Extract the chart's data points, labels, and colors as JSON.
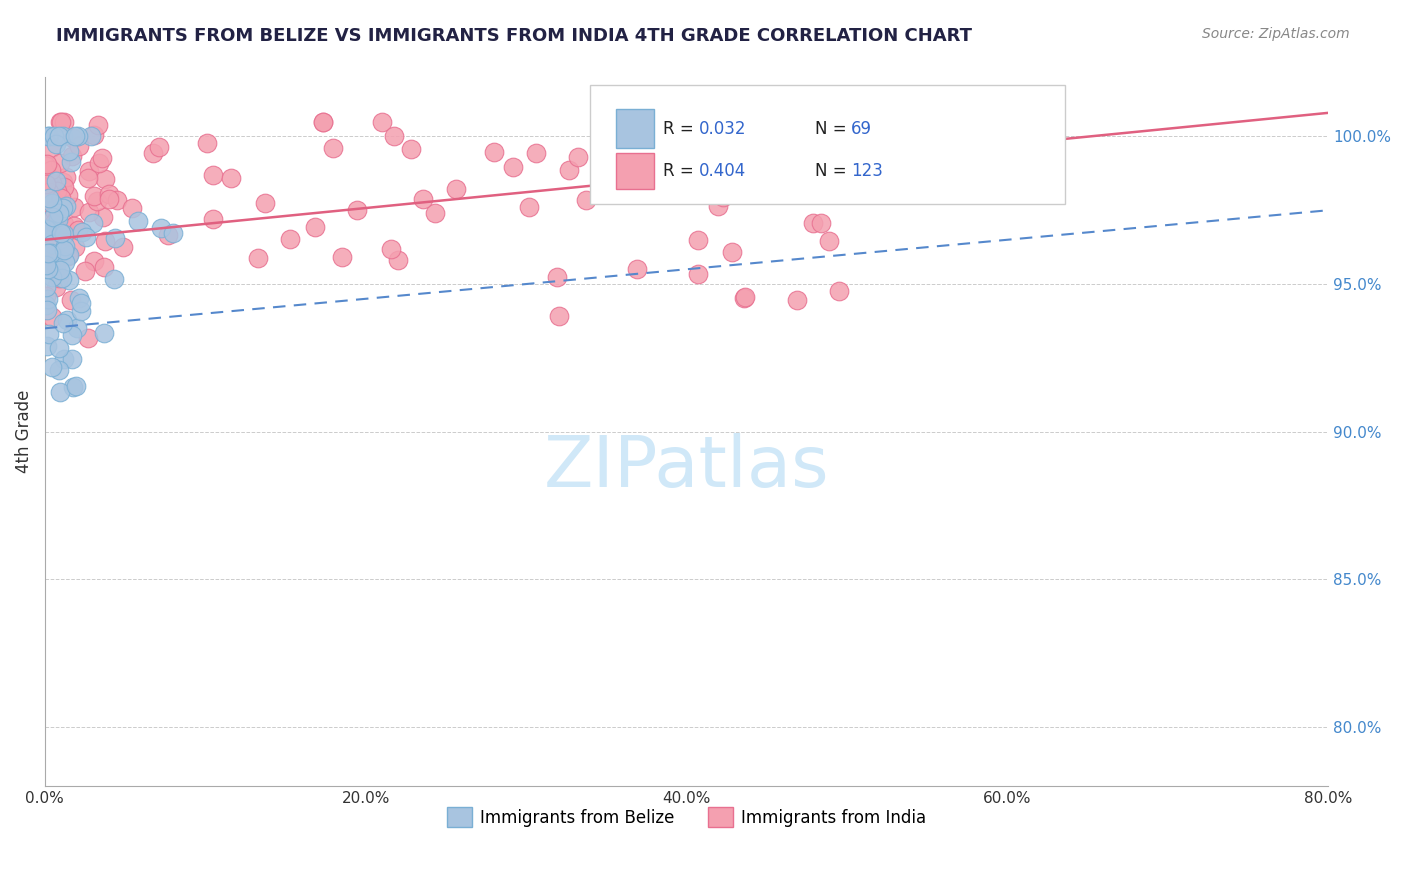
{
  "title": "IMMIGRANTS FROM BELIZE VS IMMIGRANTS FROM INDIA 4TH GRADE CORRELATION CHART",
  "source_text": "Source: ZipAtlas.com",
  "ylabel": "4th Grade",
  "legend_belize": "Immigrants from Belize",
  "legend_india": "Immigrants from India",
  "r_belize": 0.032,
  "n_belize": 69,
  "r_india": 0.404,
  "n_india": 123,
  "belize_color": "#a8c4e0",
  "india_color": "#f4a0b0",
  "belize_edge": "#7aafd4",
  "india_edge": "#e87090",
  "trend_belize_color": "#5588cc",
  "trend_india_color": "#e06080",
  "background_color": "#ffffff",
  "watermark_color": "#d0e8f8",
  "xlim": [
    0.0,
    0.8
  ],
  "ylim": [
    0.78,
    1.02
  ],
  "x_tick_positions": [
    0.0,
    0.2,
    0.4,
    0.6,
    0.8
  ],
  "x_tick_labels": [
    "0.0%",
    "20.0%",
    "40.0%",
    "60.0%",
    "80.0%"
  ],
  "y_tick_positions": [
    0.8,
    0.85,
    0.9,
    0.95,
    1.0
  ],
  "y_tick_labels": [
    "80.0%",
    "85.0%",
    "90.0%",
    "95.0%",
    "100.0%"
  ]
}
